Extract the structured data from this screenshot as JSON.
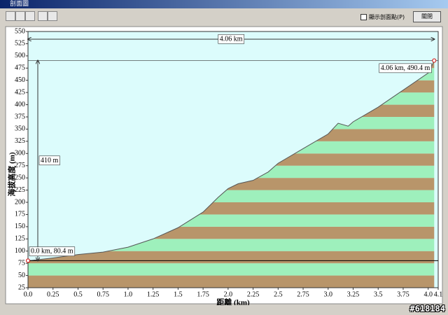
{
  "window": {
    "title": "剖面圖",
    "checkbox_label": "顯示剖面點(P)",
    "button": "關閉"
  },
  "watermark": "#618184",
  "chart_data": {
    "type": "area",
    "x_label": "距離 (km)",
    "y_label": "海拔高度 (m)",
    "x": [
      0,
      0.25,
      0.5,
      0.75,
      1.0,
      1.25,
      1.5,
      1.75,
      1.9,
      2.0,
      2.1,
      2.25,
      2.4,
      2.5,
      2.75,
      3.0,
      3.1,
      3.2,
      3.25,
      3.5,
      3.75,
      4.0,
      4.06
    ],
    "values": [
      80,
      86,
      93,
      98,
      108,
      125,
      148,
      180,
      210,
      228,
      238,
      245,
      262,
      280,
      310,
      340,
      362,
      356,
      365,
      395,
      430,
      465,
      490
    ],
    "xlim": [
      0,
      4.1
    ],
    "ylim": [
      25,
      550
    ],
    "xticks": [
      {
        "value": 0,
        "label": "0.0"
      },
      0.25,
      0.5,
      0.75,
      {
        "value": 1,
        "label": "1.0"
      },
      1.25,
      1.5,
      1.75,
      {
        "value": 2,
        "label": "2.0"
      },
      2.25,
      2.5,
      2.75,
      {
        "value": 3,
        "label": "3.0"
      },
      3.25,
      3.5,
      3.75,
      {
        "value": 4,
        "label": "4.0"
      },
      4.1
    ],
    "yticks": [
      25,
      50,
      75,
      100,
      125,
      150,
      175,
      200,
      225,
      250,
      275,
      300,
      325,
      350,
      375,
      400,
      425,
      450,
      475,
      500,
      525,
      550
    ],
    "band_colors": [
      "#b8956a",
      "#9ef0bc"
    ],
    "background": "#dcfcfc",
    "line_color": "#555555",
    "markers": [
      {
        "x": 0,
        "y": 80.4,
        "label": "0.0 km, 80.4 m"
      },
      {
        "x": 4.06,
        "y": 490.4,
        "label": "4.06 km, 490.4 m"
      }
    ],
    "distance_label": "4.06 km",
    "height_label": "410 m"
  }
}
